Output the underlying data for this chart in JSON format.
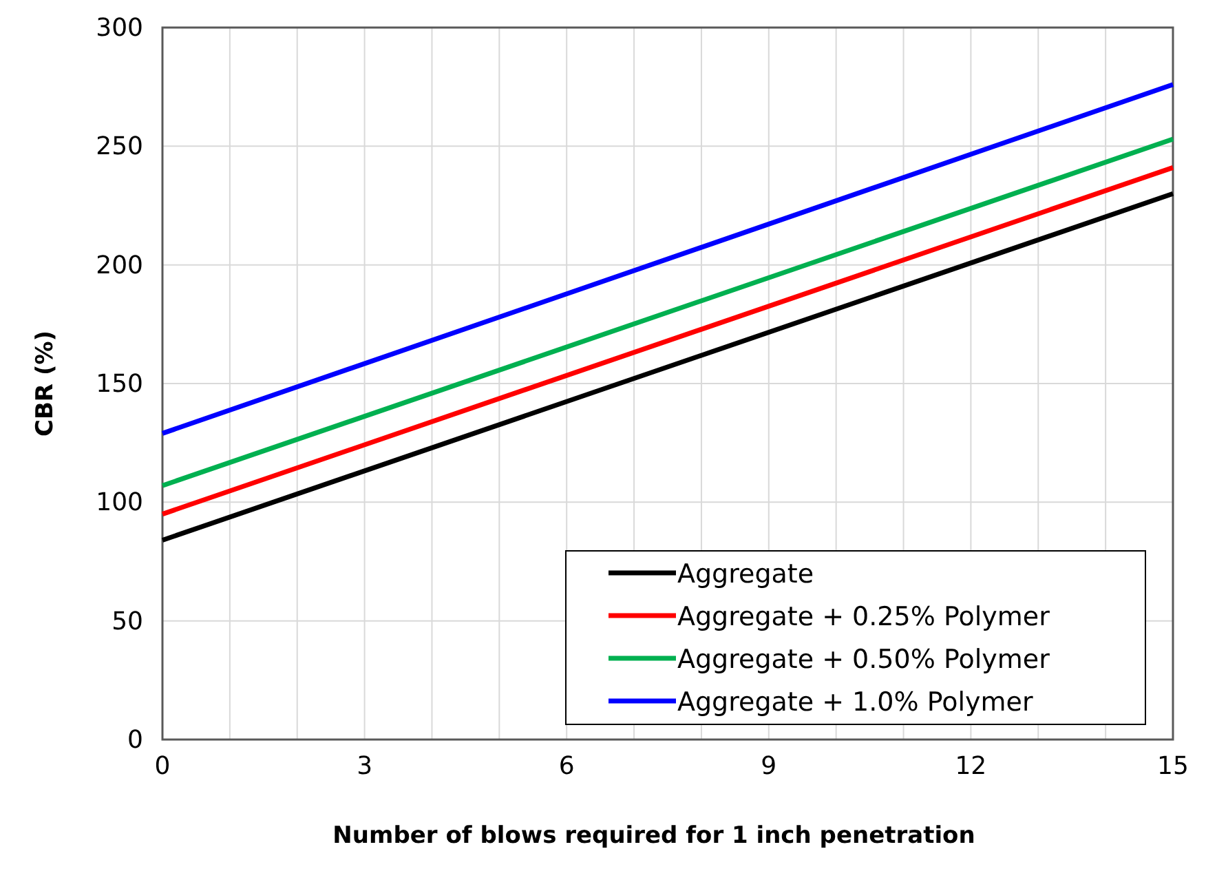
{
  "chart_data": {
    "type": "line",
    "xlabel": "Number of blows required for 1 inch penetration",
    "ylabel": "CBR (%)",
    "xlim": [
      0,
      15
    ],
    "ylim": [
      0,
      300
    ],
    "xticks": [
      0,
      {
        "value": 1,
        "label": null
      },
      {
        "value": 2,
        "label": null
      },
      3,
      {
        "value": 4,
        "label": null
      },
      {
        "value": 5,
        "label": null
      },
      6,
      {
        "value": 7,
        "label": null
      },
      {
        "value": 8,
        "label": null
      },
      9,
      {
        "value": 10,
        "label": null
      },
      {
        "value": 11,
        "label": null
      },
      12,
      {
        "value": 13,
        "label": null
      },
      {
        "value": 14,
        "label": null
      },
      15
    ],
    "yticks": [
      0,
      50,
      100,
      150,
      200,
      250,
      300
    ],
    "x": [
      0,
      15
    ],
    "series": [
      {
        "name": "Aggregate",
        "color": "#000000",
        "values": [
          84,
          230
        ]
      },
      {
        "name": "Aggregate + 0.25% Polymer",
        "color": "#ff0000",
        "values": [
          95,
          241
        ]
      },
      {
        "name": "Aggregate + 0.50% Polymer",
        "color": "#00b050",
        "values": [
          107,
          253
        ]
      },
      {
        "name": "Aggregate + 1.0% Polymer",
        "color": "#0000ff",
        "values": [
          129,
          276
        ]
      }
    ],
    "grid": true,
    "legend": "bottom right",
    "marker": "none",
    "line_style": "solid"
  }
}
